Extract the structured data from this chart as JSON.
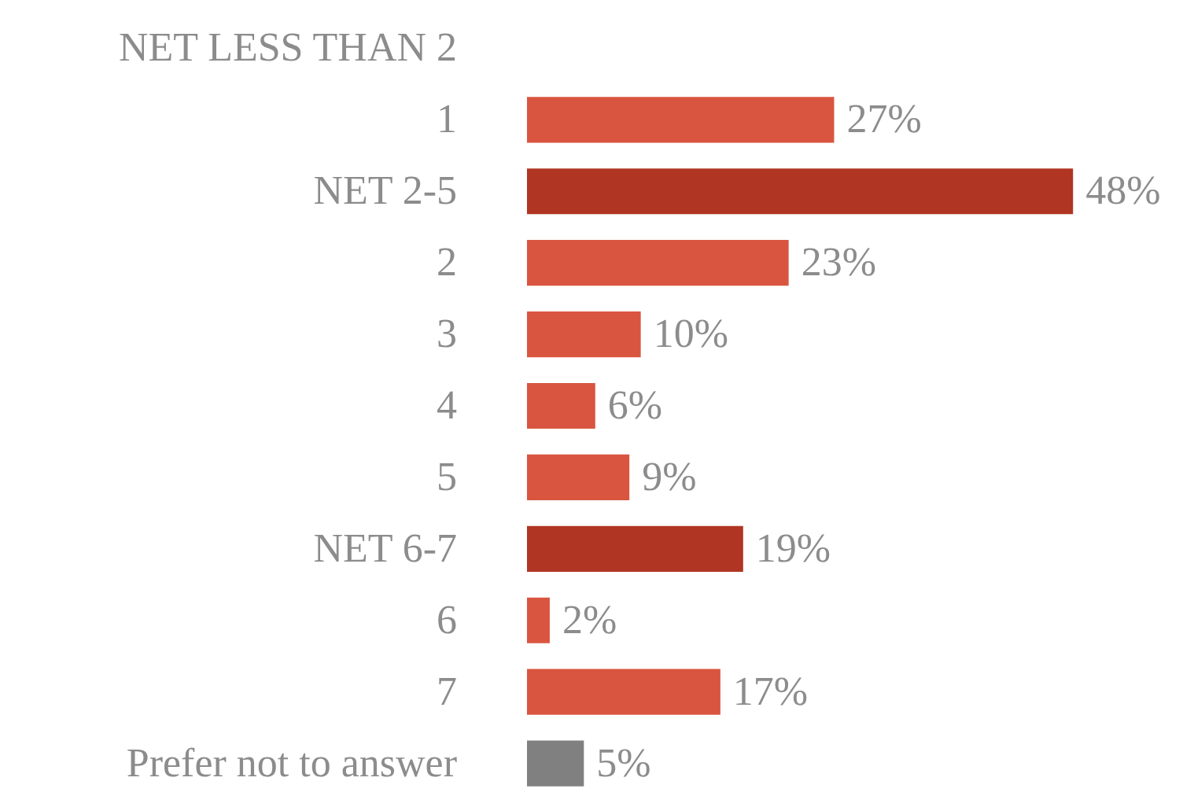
{
  "chart_data": {
    "type": "bar",
    "orientation": "horizontal",
    "data_labels": true,
    "categories": [
      "NET LESS THAN 2",
      "1",
      "NET 2-5",
      "2",
      "3",
      "4",
      "5",
      "NET 6-7",
      "6",
      "7",
      "Prefer not to answer"
    ],
    "values": [
      null,
      27,
      48,
      23,
      10,
      6,
      9,
      19,
      2,
      17,
      5
    ],
    "value_labels": [
      null,
      "27%",
      "48%",
      "23%",
      "10%",
      "6%",
      "9%",
      "19%",
      "2%",
      "17%",
      "5%"
    ],
    "colors": [
      null,
      "#d9553f",
      "#b03522",
      "#d9553f",
      "#d9553f",
      "#d9553f",
      "#d9553f",
      "#b03522",
      "#d9553f",
      "#d9553f",
      "#808080"
    ],
    "grid": false
  }
}
